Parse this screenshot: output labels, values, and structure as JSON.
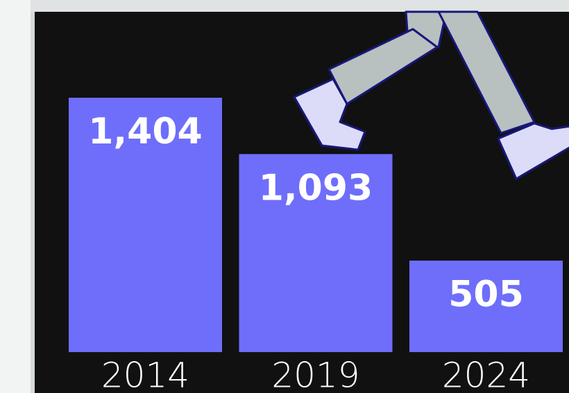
{
  "chart_data": {
    "type": "bar",
    "categories": [
      "2014",
      "2019",
      "2024"
    ],
    "values": [
      1404,
      1093,
      505
    ],
    "value_labels": [
      "1,404",
      "1,093",
      "505"
    ],
    "color": "#6e6efb"
  }
}
